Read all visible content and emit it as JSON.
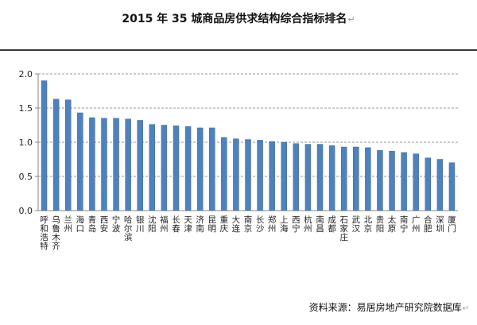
{
  "title": "2015 年 35 城商品房供求结构综合指标排名",
  "paragraph_mark": "↵",
  "source_note": "资料来源：易居房地产研究院数据库",
  "colors": {
    "bar": "#4f81bd",
    "bar_edge": "#3c6594",
    "grid": "#9a9a9a",
    "axis": "#868686"
  },
  "chart_data": {
    "type": "bar",
    "title": "2015 年 35 城商品房供求结构综合指标排名",
    "xlabel": "",
    "ylabel": "",
    "ylim": [
      0,
      2.0
    ],
    "yticks": [
      "0.0",
      "0.5",
      "1.0",
      "1.5",
      "2.0"
    ],
    "grid": true,
    "legend": "none",
    "categories": [
      "呼和浩特",
      "乌鲁木齐",
      "兰州",
      "海口",
      "青岛",
      "西安",
      "宁波",
      "哈尔滨",
      "银川",
      "沈阳",
      "福州",
      "长春",
      "天津",
      "济南",
      "昆明",
      "重庆",
      "大连",
      "南京",
      "长沙",
      "郑州",
      "上海",
      "西宁",
      "杭州",
      "南昌",
      "成都",
      "石家庄",
      "武汉",
      "北京",
      "贵阳",
      "太原",
      "南宁",
      "广州",
      "合肥",
      "深圳",
      "厦门"
    ],
    "values": [
      1.9,
      1.63,
      1.62,
      1.43,
      1.36,
      1.35,
      1.35,
      1.34,
      1.32,
      1.26,
      1.25,
      1.24,
      1.23,
      1.21,
      1.21,
      1.07,
      1.05,
      1.04,
      1.03,
      1.01,
      1.0,
      0.98,
      0.97,
      0.97,
      0.95,
      0.93,
      0.93,
      0.92,
      0.88,
      0.87,
      0.85,
      0.83,
      0.77,
      0.75,
      0.7
    ]
  }
}
